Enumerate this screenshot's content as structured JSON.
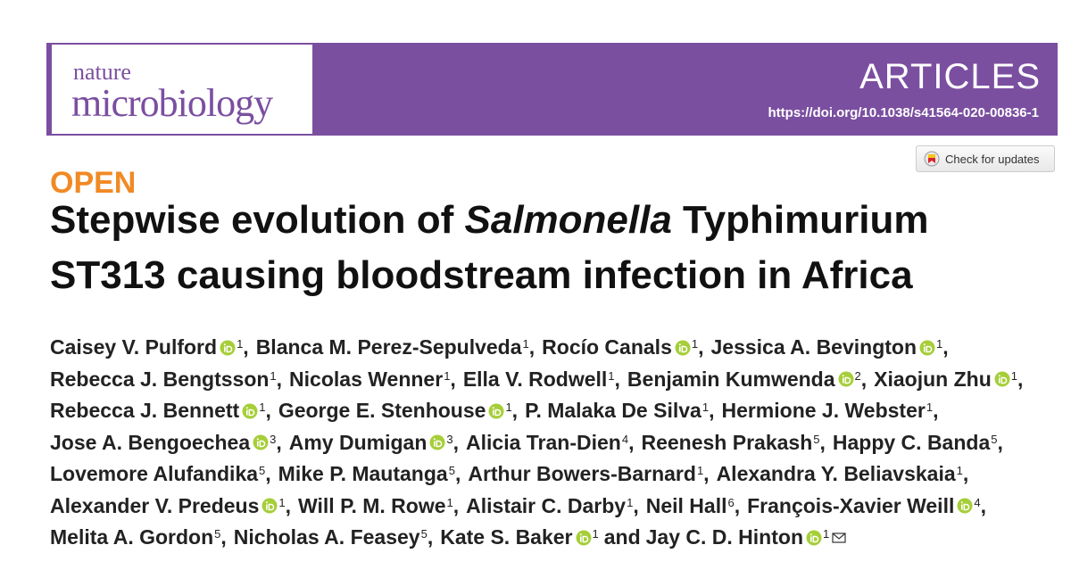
{
  "header": {
    "logo_top": "nature",
    "logo_bottom": "microbiology",
    "section": "ARTICLES",
    "doi": "https://doi.org/10.1038/s41564-020-00836-1"
  },
  "check_updates": "Check for updates",
  "access": "OPEN",
  "title": {
    "part1": "Stepwise evolution of ",
    "italic": "Salmonella",
    "part2": " Typhimurium",
    "line2": "ST313 causing bloodstream infection in Africa"
  },
  "author_lines": [
    [
      {
        "name": "Caisey V. Pulford",
        "orcid": true,
        "aff": "1",
        "sep": ","
      },
      {
        "name": "Blanca M. Perez-Sepulveda",
        "orcid": false,
        "aff": "1",
        "sep": ","
      },
      {
        "name": "Rocío Canals",
        "orcid": true,
        "aff": "1",
        "sep": ","
      },
      {
        "name": "Jessica A. Bevington",
        "orcid": true,
        "aff": "1",
        "sep": ","
      }
    ],
    [
      {
        "name": "Rebecca J. Bengtsson",
        "orcid": false,
        "aff": "1",
        "sep": ","
      },
      {
        "name": "Nicolas Wenner",
        "orcid": false,
        "aff": "1",
        "sep": ","
      },
      {
        "name": "Ella V. Rodwell",
        "orcid": false,
        "aff": "1",
        "sep": ","
      },
      {
        "name": "Benjamin Kumwenda",
        "orcid": true,
        "aff": "2",
        "sep": ","
      },
      {
        "name": "Xiaojun Zhu",
        "orcid": true,
        "aff": "1",
        "sep": ","
      }
    ],
    [
      {
        "name": "Rebecca J. Bennett",
        "orcid": true,
        "aff": "1",
        "sep": ","
      },
      {
        "name": "George E. Stenhouse",
        "orcid": true,
        "aff": "1",
        "sep": ","
      },
      {
        "name": "P. Malaka De Silva",
        "orcid": false,
        "aff": "1",
        "sep": ","
      },
      {
        "name": "Hermione J. Webster",
        "orcid": false,
        "aff": "1",
        "sep": ","
      }
    ],
    [
      {
        "name": "Jose A. Bengoechea",
        "orcid": true,
        "aff": "3",
        "sep": ","
      },
      {
        "name": "Amy Dumigan",
        "orcid": true,
        "aff": "3",
        "sep": ","
      },
      {
        "name": "Alicia Tran-Dien",
        "orcid": false,
        "aff": "4",
        "sep": ","
      },
      {
        "name": "Reenesh Prakash",
        "orcid": false,
        "aff": "5",
        "sep": ","
      },
      {
        "name": "Happy C. Banda",
        "orcid": false,
        "aff": "5",
        "sep": ","
      }
    ],
    [
      {
        "name": "Lovemore Alufandika",
        "orcid": false,
        "aff": "5",
        "sep": ","
      },
      {
        "name": "Mike P. Mautanga",
        "orcid": false,
        "aff": "5",
        "sep": ","
      },
      {
        "name": "Arthur Bowers-Barnard",
        "orcid": false,
        "aff": "1",
        "sep": ","
      },
      {
        "name": "Alexandra Y. Beliavskaia",
        "orcid": false,
        "aff": "1",
        "sep": ","
      }
    ],
    [
      {
        "name": "Alexander V. Predeus",
        "orcid": true,
        "aff": "1",
        "sep": ","
      },
      {
        "name": "Will P. M. Rowe",
        "orcid": false,
        "aff": "1",
        "sep": ","
      },
      {
        "name": "Alistair C. Darby",
        "orcid": false,
        "aff": "1",
        "sep": ","
      },
      {
        "name": "Neil Hall",
        "orcid": false,
        "aff": "6",
        "sep": ","
      },
      {
        "name": "François-Xavier Weill",
        "orcid": true,
        "aff": "4",
        "sep": ","
      }
    ],
    [
      {
        "name": "Melita A. Gordon",
        "orcid": false,
        "aff": "5",
        "sep": ","
      },
      {
        "name": "Nicholas A. Feasey",
        "orcid": false,
        "aff": "5",
        "sep": ","
      },
      {
        "name": "Kate S. Baker",
        "orcid": true,
        "aff": "1",
        "sep": "and"
      },
      {
        "name": "Jay C. D. Hinton",
        "orcid": true,
        "aff": "1",
        "email": true
      }
    ]
  ]
}
